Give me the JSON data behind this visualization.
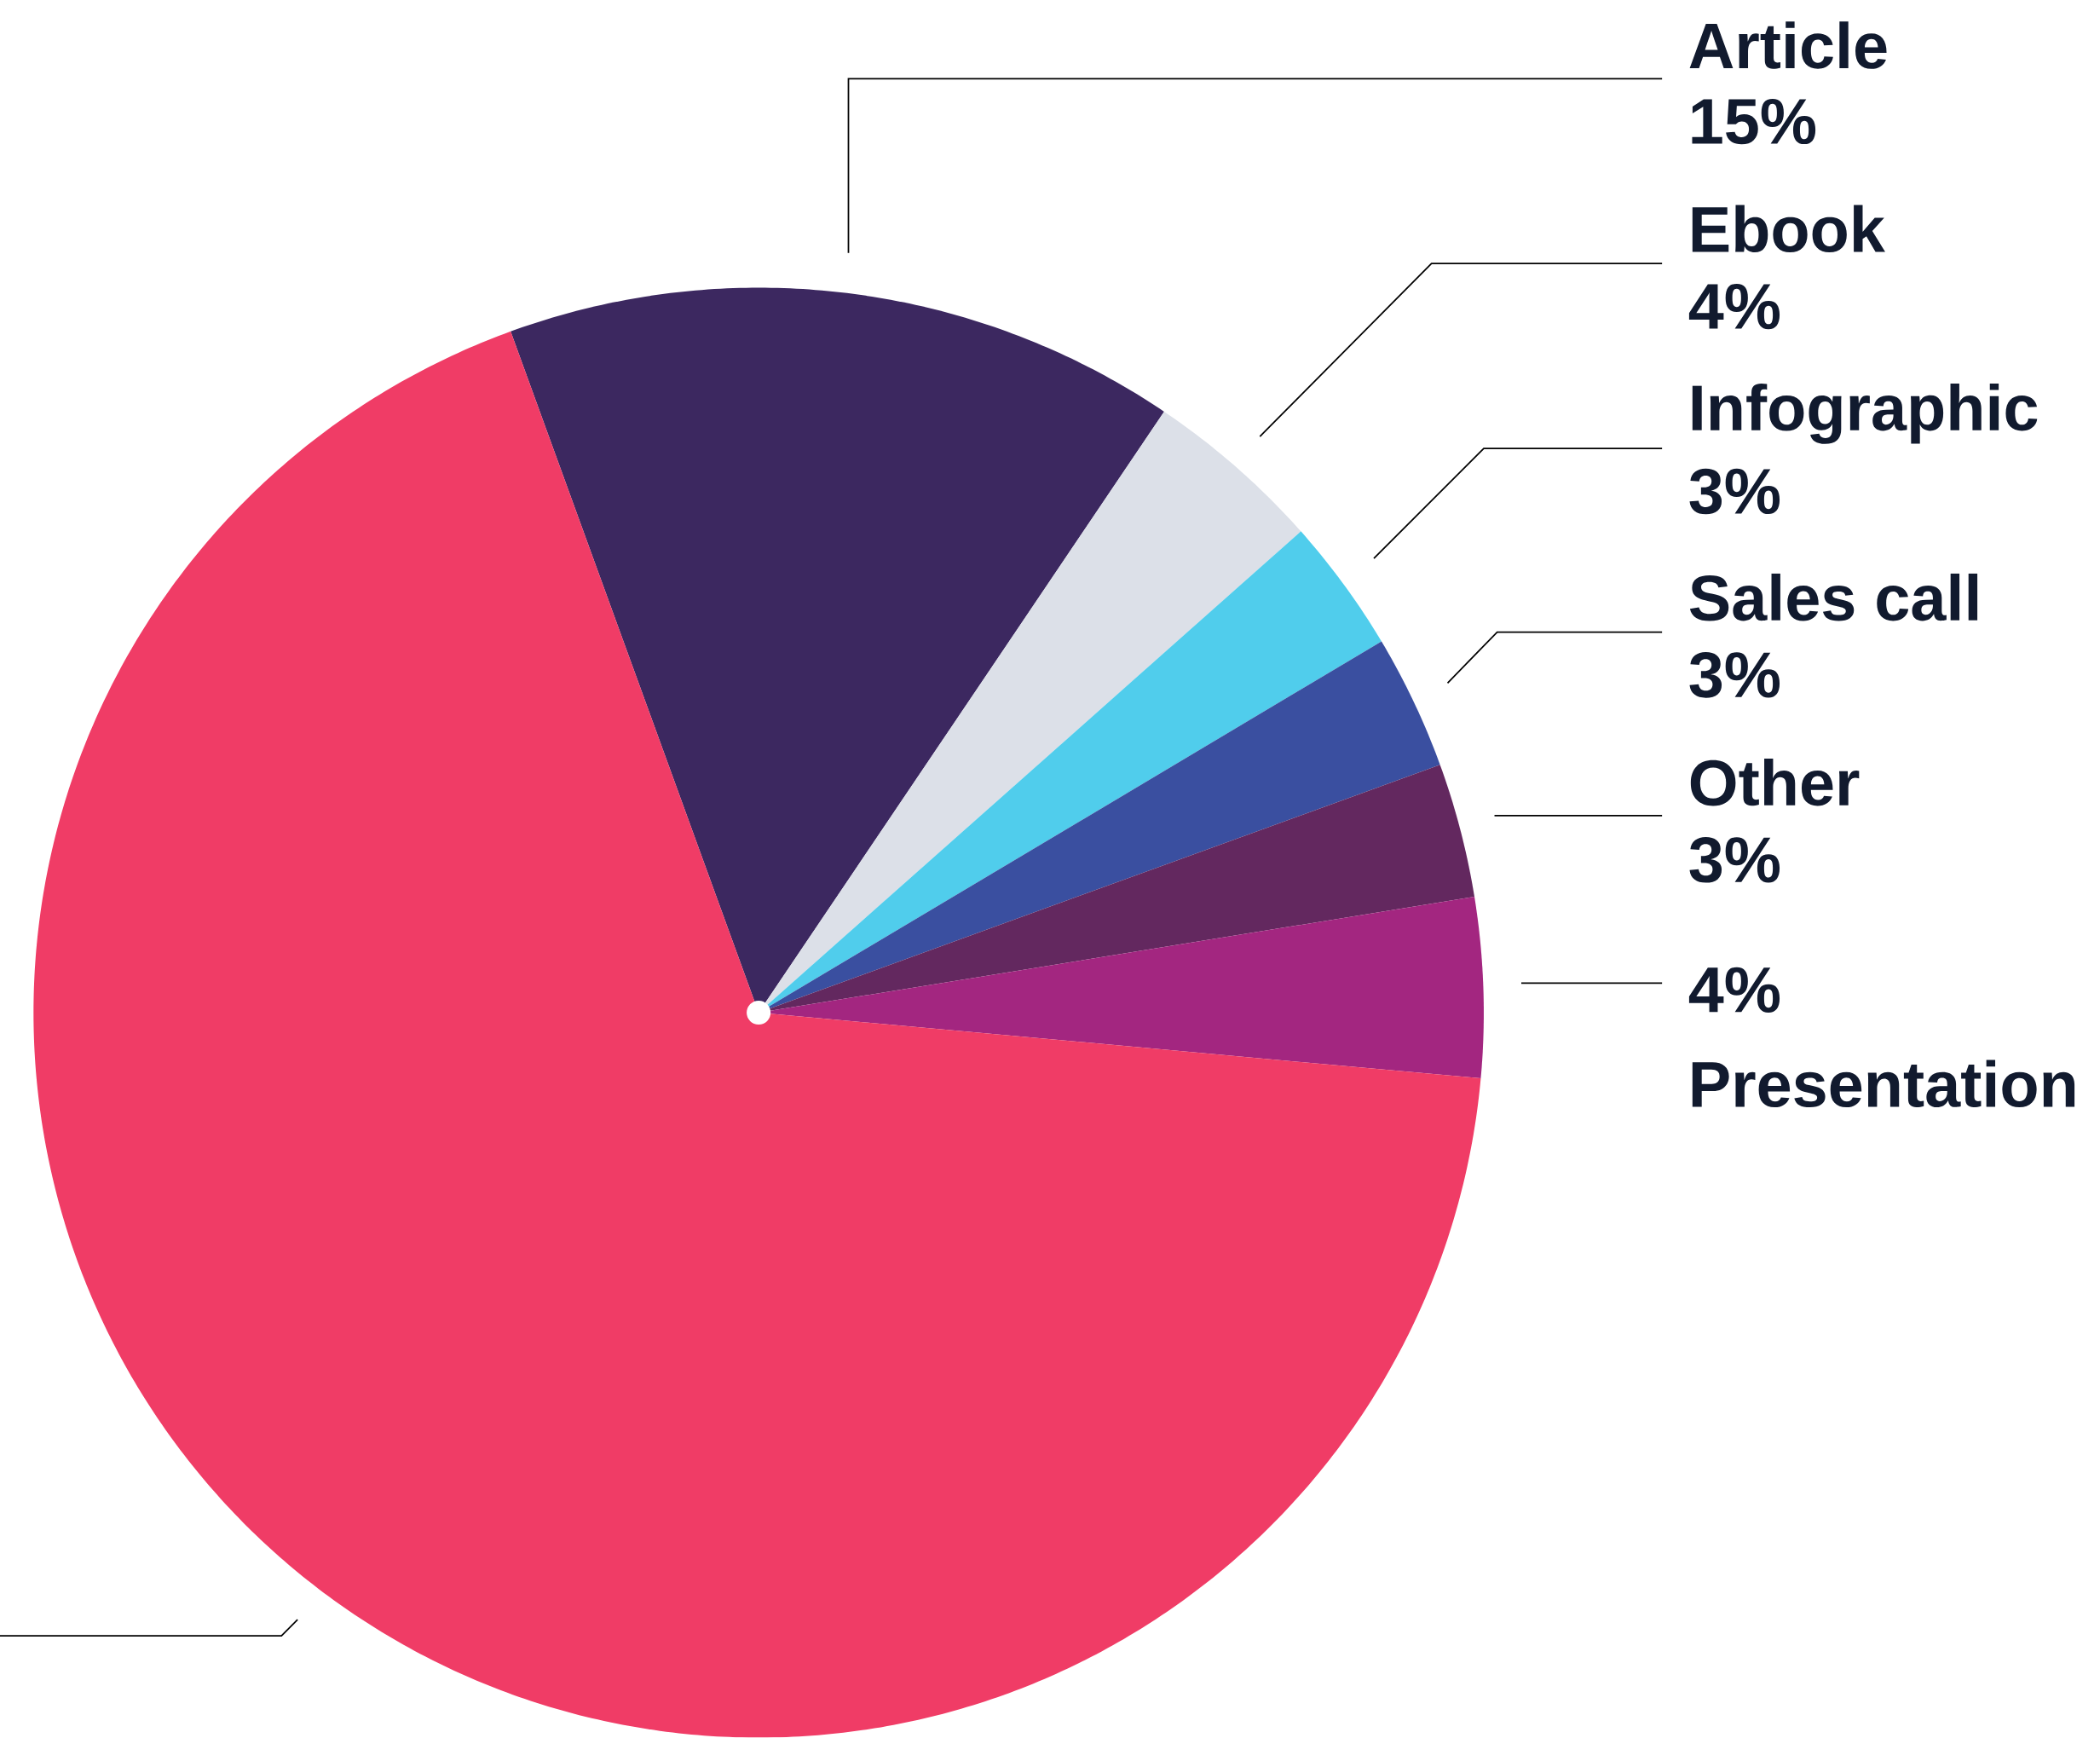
{
  "chart_data": {
    "type": "pie",
    "categories": [
      "Article",
      "Ebook",
      "Infographic",
      "Sales call",
      "Other",
      "Presentation",
      null
    ],
    "values": [
      15,
      4,
      3,
      3,
      3,
      4,
      68
    ],
    "value_labels": [
      "15%",
      "4%",
      "3%",
      "3%",
      "3%",
      "4%",
      null
    ],
    "colors": [
      "#3c2860",
      "#dce0e8",
      "#50cdec",
      "#3a4fa0",
      "#63285f",
      "#a32680",
      "#f03c66"
    ]
  }
}
